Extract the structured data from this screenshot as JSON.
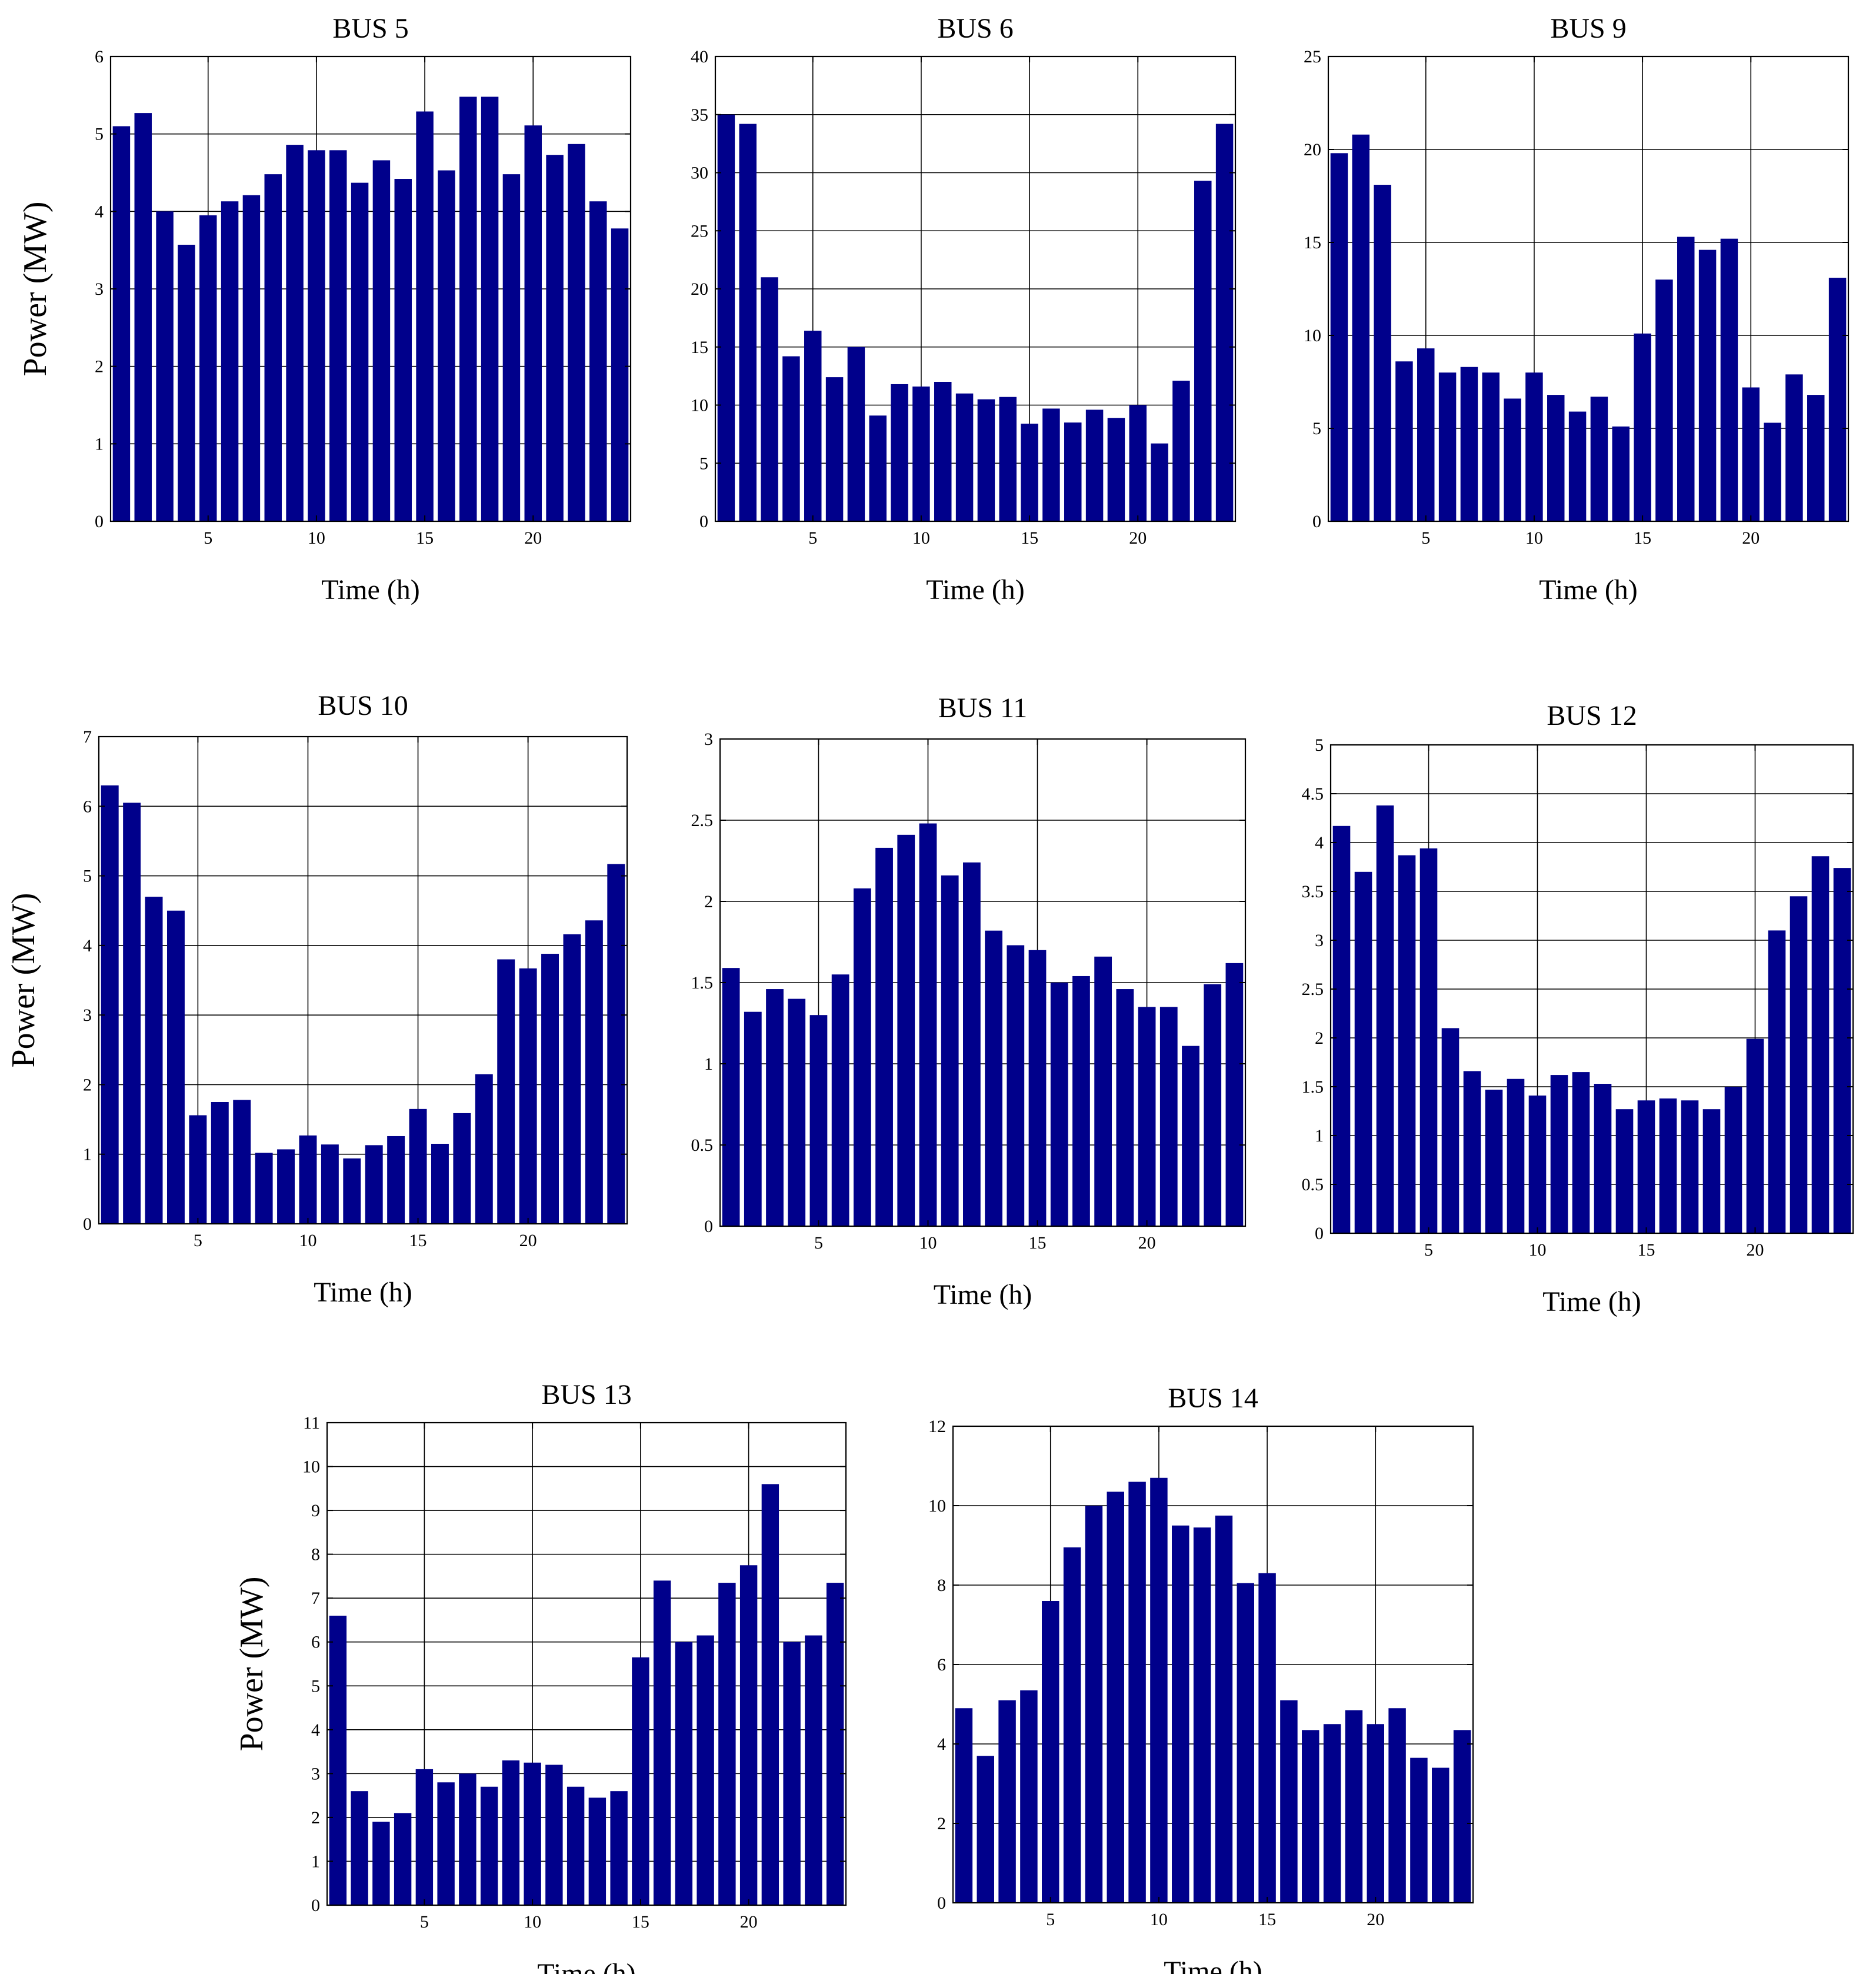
{
  "figure": {
    "bar_color": "#00008B",
    "grid_color": "#000000",
    "background": "#ffffff"
  },
  "chart_data": [
    {
      "id": "bus5",
      "type": "bar",
      "title": "BUS 5",
      "xlabel": "Time (h)",
      "ylabel": "Power (MW)",
      "show_ylabel": true,
      "grid": true,
      "xlim": [
        0.5,
        24.5
      ],
      "ylim": [
        0,
        6
      ],
      "xticks": [
        5,
        10,
        15,
        20
      ],
      "yticks": [
        0,
        1,
        2,
        3,
        4,
        5,
        6
      ],
      "ytick_labels": [
        "0",
        "1",
        "2",
        "3",
        "4",
        "5",
        "6"
      ],
      "x": [
        1,
        2,
        3,
        4,
        5,
        6,
        7,
        8,
        9,
        10,
        11,
        12,
        13,
        14,
        15,
        16,
        17,
        18,
        19,
        20,
        21,
        22,
        23,
        24
      ],
      "values": [
        5.1,
        5.27,
        4.0,
        3.57,
        3.95,
        4.13,
        4.21,
        4.48,
        4.86,
        4.79,
        4.79,
        4.37,
        4.66,
        4.42,
        5.29,
        4.53,
        5.48,
        5.48,
        4.48,
        5.11,
        4.73,
        4.87,
        4.13,
        3.78
      ]
    },
    {
      "id": "bus6",
      "type": "bar",
      "title": "BUS 6",
      "xlabel": "Time (h)",
      "ylabel": "Power (MW)",
      "show_ylabel": false,
      "grid": true,
      "xlim": [
        0.5,
        24.5
      ],
      "ylim": [
        0,
        40
      ],
      "xticks": [
        5,
        10,
        15,
        20
      ],
      "yticks": [
        0,
        5,
        10,
        15,
        20,
        25,
        30,
        35,
        40
      ],
      "ytick_labels": [
        "0",
        "5",
        "10",
        "15",
        "20",
        "25",
        "30",
        "35",
        "40"
      ],
      "x": [
        1,
        2,
        3,
        4,
        5,
        6,
        7,
        8,
        9,
        10,
        11,
        12,
        13,
        14,
        15,
        16,
        17,
        18,
        19,
        20,
        21,
        22,
        23,
        24
      ],
      "values": [
        35.0,
        34.2,
        21.0,
        14.2,
        16.4,
        12.4,
        15.0,
        9.1,
        11.8,
        11.6,
        12.0,
        11.0,
        10.5,
        10.7,
        8.4,
        9.7,
        8.5,
        9.6,
        8.9,
        10.0,
        6.7,
        12.1,
        29.3,
        34.2
      ]
    },
    {
      "id": "bus9",
      "type": "bar",
      "title": "BUS 9",
      "xlabel": "Time (h)",
      "ylabel": "Power (MW)",
      "show_ylabel": false,
      "grid": true,
      "xlim": [
        0.5,
        24.5
      ],
      "ylim": [
        0,
        25
      ],
      "xticks": [
        5,
        10,
        15,
        20
      ],
      "yticks": [
        0,
        5,
        10,
        15,
        20,
        25
      ],
      "ytick_labels": [
        "0",
        "5",
        "10",
        "15",
        "20",
        "25"
      ],
      "x": [
        1,
        2,
        3,
        4,
        5,
        6,
        7,
        8,
        9,
        10,
        11,
        12,
        13,
        14,
        15,
        16,
        17,
        18,
        19,
        20,
        21,
        22,
        23,
        24
      ],
      "values": [
        19.8,
        20.8,
        18.1,
        8.6,
        9.3,
        8.0,
        8.3,
        8.0,
        6.6,
        8.0,
        6.8,
        5.9,
        6.7,
        5.1,
        10.1,
        13.0,
        15.3,
        14.6,
        15.2,
        7.2,
        5.3,
        7.9,
        6.8,
        13.1
      ]
    },
    {
      "id": "bus10",
      "type": "bar",
      "title": "BUS 10",
      "xlabel": "Time (h)",
      "ylabel": "Power (MW)",
      "show_ylabel": true,
      "grid": true,
      "xlim": [
        0.5,
        24.5
      ],
      "ylim": [
        0,
        7
      ],
      "xticks": [
        5,
        10,
        15,
        20
      ],
      "yticks": [
        0,
        1,
        2,
        3,
        4,
        5,
        6,
        7
      ],
      "ytick_labels": [
        "0",
        "1",
        "2",
        "3",
        "4",
        "5",
        "6",
        "7"
      ],
      "x": [
        1,
        2,
        3,
        4,
        5,
        6,
        7,
        8,
        9,
        10,
        11,
        12,
        13,
        14,
        15,
        16,
        17,
        18,
        19,
        20,
        21,
        22,
        23,
        24
      ],
      "values": [
        6.3,
        6.05,
        4.7,
        4.5,
        1.56,
        1.75,
        1.78,
        1.02,
        1.07,
        1.27,
        1.14,
        0.94,
        1.13,
        1.26,
        1.65,
        1.15,
        1.59,
        2.15,
        3.8,
        3.67,
        3.88,
        4.16,
        4.36,
        5.17
      ]
    },
    {
      "id": "bus11",
      "type": "bar",
      "title": "BUS 11",
      "xlabel": "Time (h)",
      "ylabel": "Power (MW)",
      "show_ylabel": false,
      "grid": true,
      "xlim": [
        0.5,
        24.5
      ],
      "ylim": [
        0,
        3
      ],
      "xticks": [
        5,
        10,
        15,
        20
      ],
      "yticks": [
        0,
        0.5,
        1,
        1.5,
        2,
        2.5,
        3
      ],
      "ytick_labels": [
        "0",
        "0.5",
        "1",
        "1.5",
        "2",
        "2.5",
        "3"
      ],
      "x": [
        1,
        2,
        3,
        4,
        5,
        6,
        7,
        8,
        9,
        10,
        11,
        12,
        13,
        14,
        15,
        16,
        17,
        18,
        19,
        20,
        21,
        22,
        23,
        24
      ],
      "values": [
        1.59,
        1.32,
        1.46,
        1.4,
        1.3,
        1.55,
        2.08,
        2.33,
        2.41,
        2.48,
        2.16,
        2.24,
        1.82,
        1.73,
        1.7,
        1.5,
        1.54,
        1.66,
        1.46,
        1.35,
        1.35,
        1.11,
        1.49,
        1.62
      ]
    },
    {
      "id": "bus12",
      "type": "bar",
      "title": "BUS 12",
      "xlabel": "Time (h)",
      "ylabel": "Power (MW)",
      "show_ylabel": false,
      "grid": true,
      "xlim": [
        0.5,
        24.5
      ],
      "ylim": [
        0,
        5
      ],
      "xticks": [
        5,
        10,
        15,
        20
      ],
      "yticks": [
        0,
        0.5,
        1,
        1.5,
        2,
        2.5,
        3,
        3.5,
        4,
        4.5,
        5
      ],
      "ytick_labels": [
        "0",
        "0.5",
        "1",
        "1.5",
        "2",
        "2.5",
        "3",
        "3.5",
        "4",
        "4.5",
        "5"
      ],
      "x": [
        1,
        2,
        3,
        4,
        5,
        6,
        7,
        8,
        9,
        10,
        11,
        12,
        13,
        14,
        15,
        16,
        17,
        18,
        19,
        20,
        21,
        22,
        23,
        24
      ],
      "values": [
        4.17,
        3.7,
        4.38,
        3.87,
        3.94,
        2.1,
        1.66,
        1.47,
        1.58,
        1.41,
        1.62,
        1.65,
        1.53,
        1.27,
        1.36,
        1.38,
        1.36,
        1.27,
        1.5,
        1.99,
        3.1,
        3.45,
        3.86,
        3.74
      ]
    },
    {
      "id": "bus13",
      "type": "bar",
      "title": "BUS 13",
      "xlabel": "Time (h)",
      "ylabel": "Power (MW)",
      "show_ylabel": true,
      "grid": true,
      "xlim": [
        0.5,
        24.5
      ],
      "ylim": [
        0,
        11
      ],
      "xticks": [
        5,
        10,
        15,
        20
      ],
      "yticks": [
        0,
        1,
        2,
        3,
        4,
        5,
        6,
        7,
        8,
        9,
        10,
        11
      ],
      "ytick_labels": [
        "0",
        "1",
        "2",
        "3",
        "4",
        "5",
        "6",
        "7",
        "8",
        "9",
        "10",
        "11"
      ],
      "x": [
        1,
        2,
        3,
        4,
        5,
        6,
        7,
        8,
        9,
        10,
        11,
        12,
        13,
        14,
        15,
        16,
        17,
        18,
        19,
        20,
        21,
        22,
        23,
        24
      ],
      "values": [
        6.6,
        2.6,
        1.9,
        2.1,
        3.1,
        2.8,
        3.0,
        2.7,
        3.3,
        3.25,
        3.2,
        2.7,
        2.45,
        2.6,
        5.65,
        7.4,
        6.0,
        6.15,
        7.35,
        7.75,
        9.6,
        6.0,
        6.15,
        7.35
      ]
    },
    {
      "id": "bus14",
      "type": "bar",
      "title": "BUS 14",
      "xlabel": "Time (h)",
      "ylabel": "Power (MW)",
      "show_ylabel": false,
      "grid": true,
      "xlim": [
        0.5,
        24.5
      ],
      "ylim": [
        0,
        12
      ],
      "xticks": [
        5,
        10,
        15,
        20
      ],
      "yticks": [
        0,
        2,
        4,
        6,
        8,
        10,
        12
      ],
      "ytick_labels": [
        "0",
        "2",
        "4",
        "6",
        "8",
        "10",
        "12"
      ],
      "x": [
        1,
        2,
        3,
        4,
        5,
        6,
        7,
        8,
        9,
        10,
        11,
        12,
        13,
        14,
        15,
        16,
        17,
        18,
        19,
        20,
        21,
        22,
        23,
        24
      ],
      "values": [
        4.9,
        3.7,
        5.1,
        5.35,
        7.6,
        8.95,
        10.0,
        10.35,
        10.6,
        10.7,
        9.5,
        9.45,
        9.75,
        8.05,
        8.3,
        5.1,
        4.35,
        4.5,
        4.85,
        4.5,
        4.9,
        3.65,
        3.4,
        4.35
      ]
    }
  ]
}
